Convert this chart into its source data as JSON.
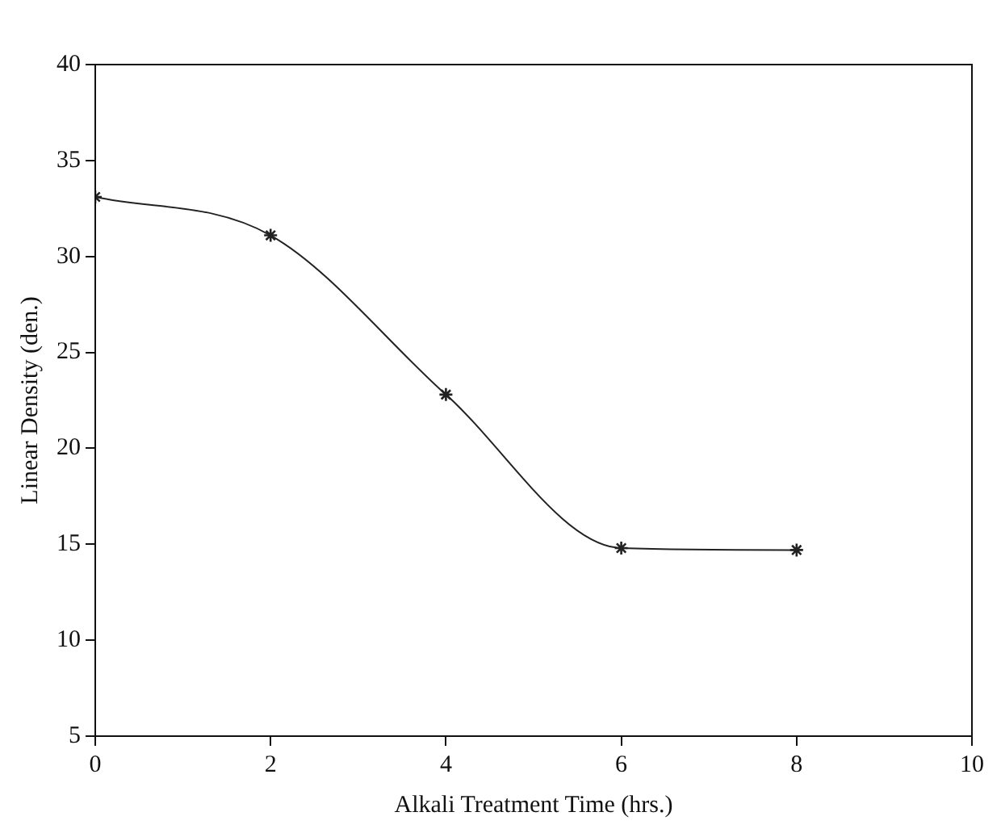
{
  "chart_data": {
    "type": "line",
    "xlabel": "Alkali Treatment Time (hrs.)",
    "ylabel": "Linear Density (den.)",
    "x": [
      0,
      2,
      4,
      6,
      8
    ],
    "series": [
      {
        "color": "#222222",
        "values": [
          33.1,
          31.1,
          22.8,
          14.8,
          14.7
        ]
      }
    ],
    "xlim": [
      0,
      10
    ],
    "xticks": [
      0,
      2,
      4,
      6,
      8,
      10
    ],
    "ylim": [
      5,
      40
    ],
    "yticks": [
      5,
      10,
      15,
      20,
      25,
      30,
      35,
      40
    ],
    "grid": false,
    "legend": false,
    "marker": "cross",
    "line_style": "solid"
  }
}
